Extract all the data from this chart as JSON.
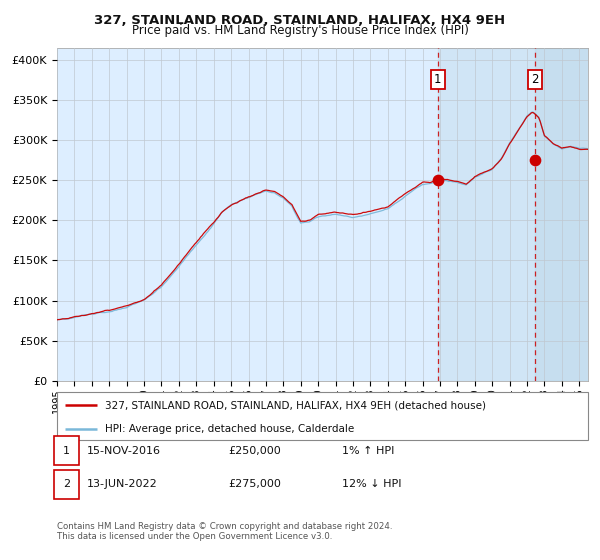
{
  "title": "327, STAINLAND ROAD, STAINLAND, HALIFAX, HX4 9EH",
  "subtitle": "Price paid vs. HM Land Registry's House Price Index (HPI)",
  "legend_line1": "327, STAINLAND ROAD, STAINLAND, HALIFAX, HX4 9EH (detached house)",
  "legend_line2": "HPI: Average price, detached house, Calderdale",
  "annotation1_label": "1",
  "annotation1_date": "15-NOV-2016",
  "annotation1_price": "£250,000",
  "annotation1_hpi": "1% ↑ HPI",
  "annotation1_year": 2016.875,
  "annotation1_value": 250000,
  "annotation2_label": "2",
  "annotation2_date": "13-JUN-2022",
  "annotation2_price": "£275,000",
  "annotation2_hpi": "12% ↓ HPI",
  "annotation2_year": 2022.45,
  "annotation2_value": 275000,
  "ylabel_ticks": [
    "£0",
    "£50K",
    "£100K",
    "£150K",
    "£200K",
    "£250K",
    "£300K",
    "£350K",
    "£400K"
  ],
  "ytick_values": [
    0,
    50000,
    100000,
    150000,
    200000,
    250000,
    300000,
    350000,
    400000
  ],
  "hpi_color": "#7ab8d9",
  "price_color": "#cc0000",
  "vline_color": "#cc0000",
  "plot_bg_color": "#ddeeff",
  "shade_color": "#c8dff0",
  "footnote": "Contains HM Land Registry data © Crown copyright and database right 2024.\nThis data is licensed under the Open Government Licence v3.0.",
  "key_years_hpi": [
    1995,
    1995.5,
    1996,
    1997,
    1998,
    1999,
    2000,
    2001,
    2002,
    2003,
    2004,
    2004.5,
    2005,
    2006,
    2007,
    2007.5,
    2008,
    2008.5,
    2009,
    2009.5,
    2010,
    2011,
    2012,
    2013,
    2014,
    2015,
    2016,
    2016.5,
    2017,
    2018,
    2018.5,
    2019,
    2020,
    2020.5,
    2021,
    2021.5,
    2022,
    2022.3,
    2022.7,
    2023,
    2023.5,
    2024,
    2024.5,
    2025
  ],
  "key_values_hpi": [
    76000,
    77500,
    80000,
    84000,
    88000,
    93000,
    101000,
    118000,
    143000,
    170000,
    196000,
    210000,
    218000,
    228000,
    237000,
    235000,
    228000,
    218000,
    198000,
    200000,
    207000,
    210000,
    206000,
    210000,
    216000,
    232000,
    247000,
    248000,
    252000,
    249000,
    246000,
    255000,
    265000,
    278000,
    298000,
    315000,
    332000,
    338000,
    330000,
    308000,
    298000,
    292000,
    295000,
    292000
  ],
  "xtick_years": [
    1995,
    1996,
    1997,
    1998,
    1999,
    2000,
    2001,
    2002,
    2003,
    2004,
    2005,
    2006,
    2007,
    2008,
    2009,
    2010,
    2011,
    2012,
    2013,
    2014,
    2015,
    2016,
    2017,
    2018,
    2019,
    2020,
    2021,
    2022,
    2023,
    2024,
    2025
  ]
}
